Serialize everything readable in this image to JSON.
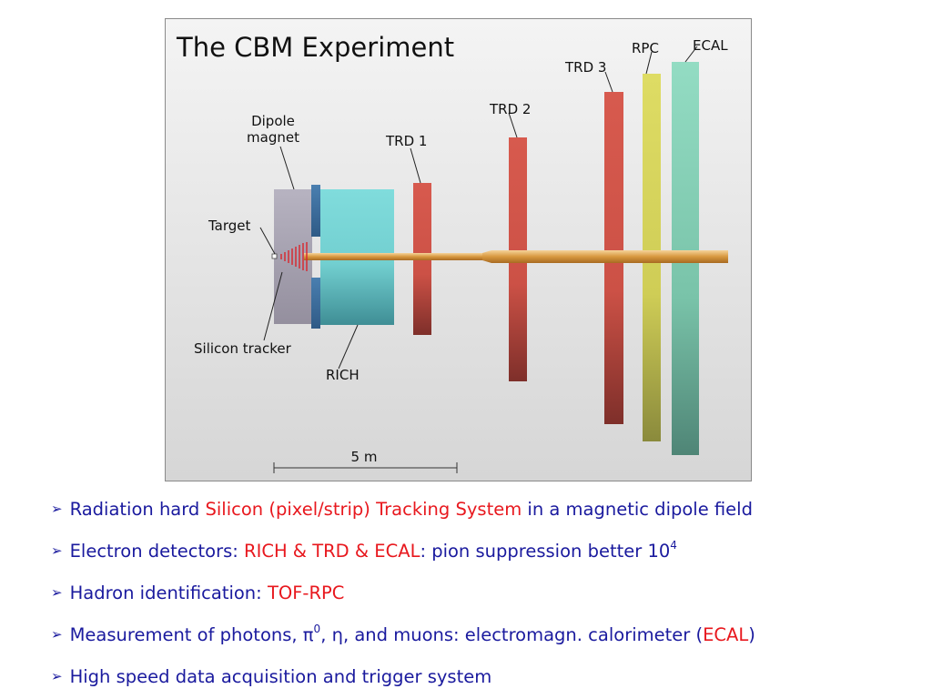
{
  "diagram": {
    "title": "The CBM Experiment",
    "labels": {
      "dipole_line1": "Dipole",
      "dipole_line2": "magnet",
      "target": "Target",
      "silicon_tracker": "Silicon tracker",
      "rich": "RICH",
      "trd1": "TRD 1",
      "trd2": "TRD 2",
      "trd3": "TRD 3",
      "rpc": "RPC",
      "ecal": "ECAL",
      "scale": "5 m"
    },
    "colors": {
      "background": "#e4e4e4",
      "magnet": "#b2aebb",
      "magnet_coil": "#3f6f9d",
      "rich": "#7fd9d9",
      "trd": "#d2554a",
      "rpc": "#d8d85c",
      "ecal": "#8fd8bc",
      "beam_pipe": "#d9a35a",
      "target_hits": "#d9242b"
    }
  },
  "bullets": [
    {
      "prefix": "Radiation hard ",
      "highlight": "Silicon (pixel/strip) Tracking System",
      "suffix": " in a magnetic dipole field"
    },
    {
      "prefix": "Electron detectors: ",
      "highlight": "RICH & TRD & ECAL",
      "suffix": ":  pion suppression better 10",
      "sup": "4"
    },
    {
      "prefix": "Hadron identification:  ",
      "highlight": "TOF-RPC"
    },
    {
      "prefix": "Measurement of photons, π",
      "sup": "0",
      "mid": ", η, and muons:  electromagn. calorimeter (",
      "highlight": "ECAL",
      "suffix": ")"
    },
    {
      "prefix": "High speed data acquisition and trigger system"
    }
  ]
}
